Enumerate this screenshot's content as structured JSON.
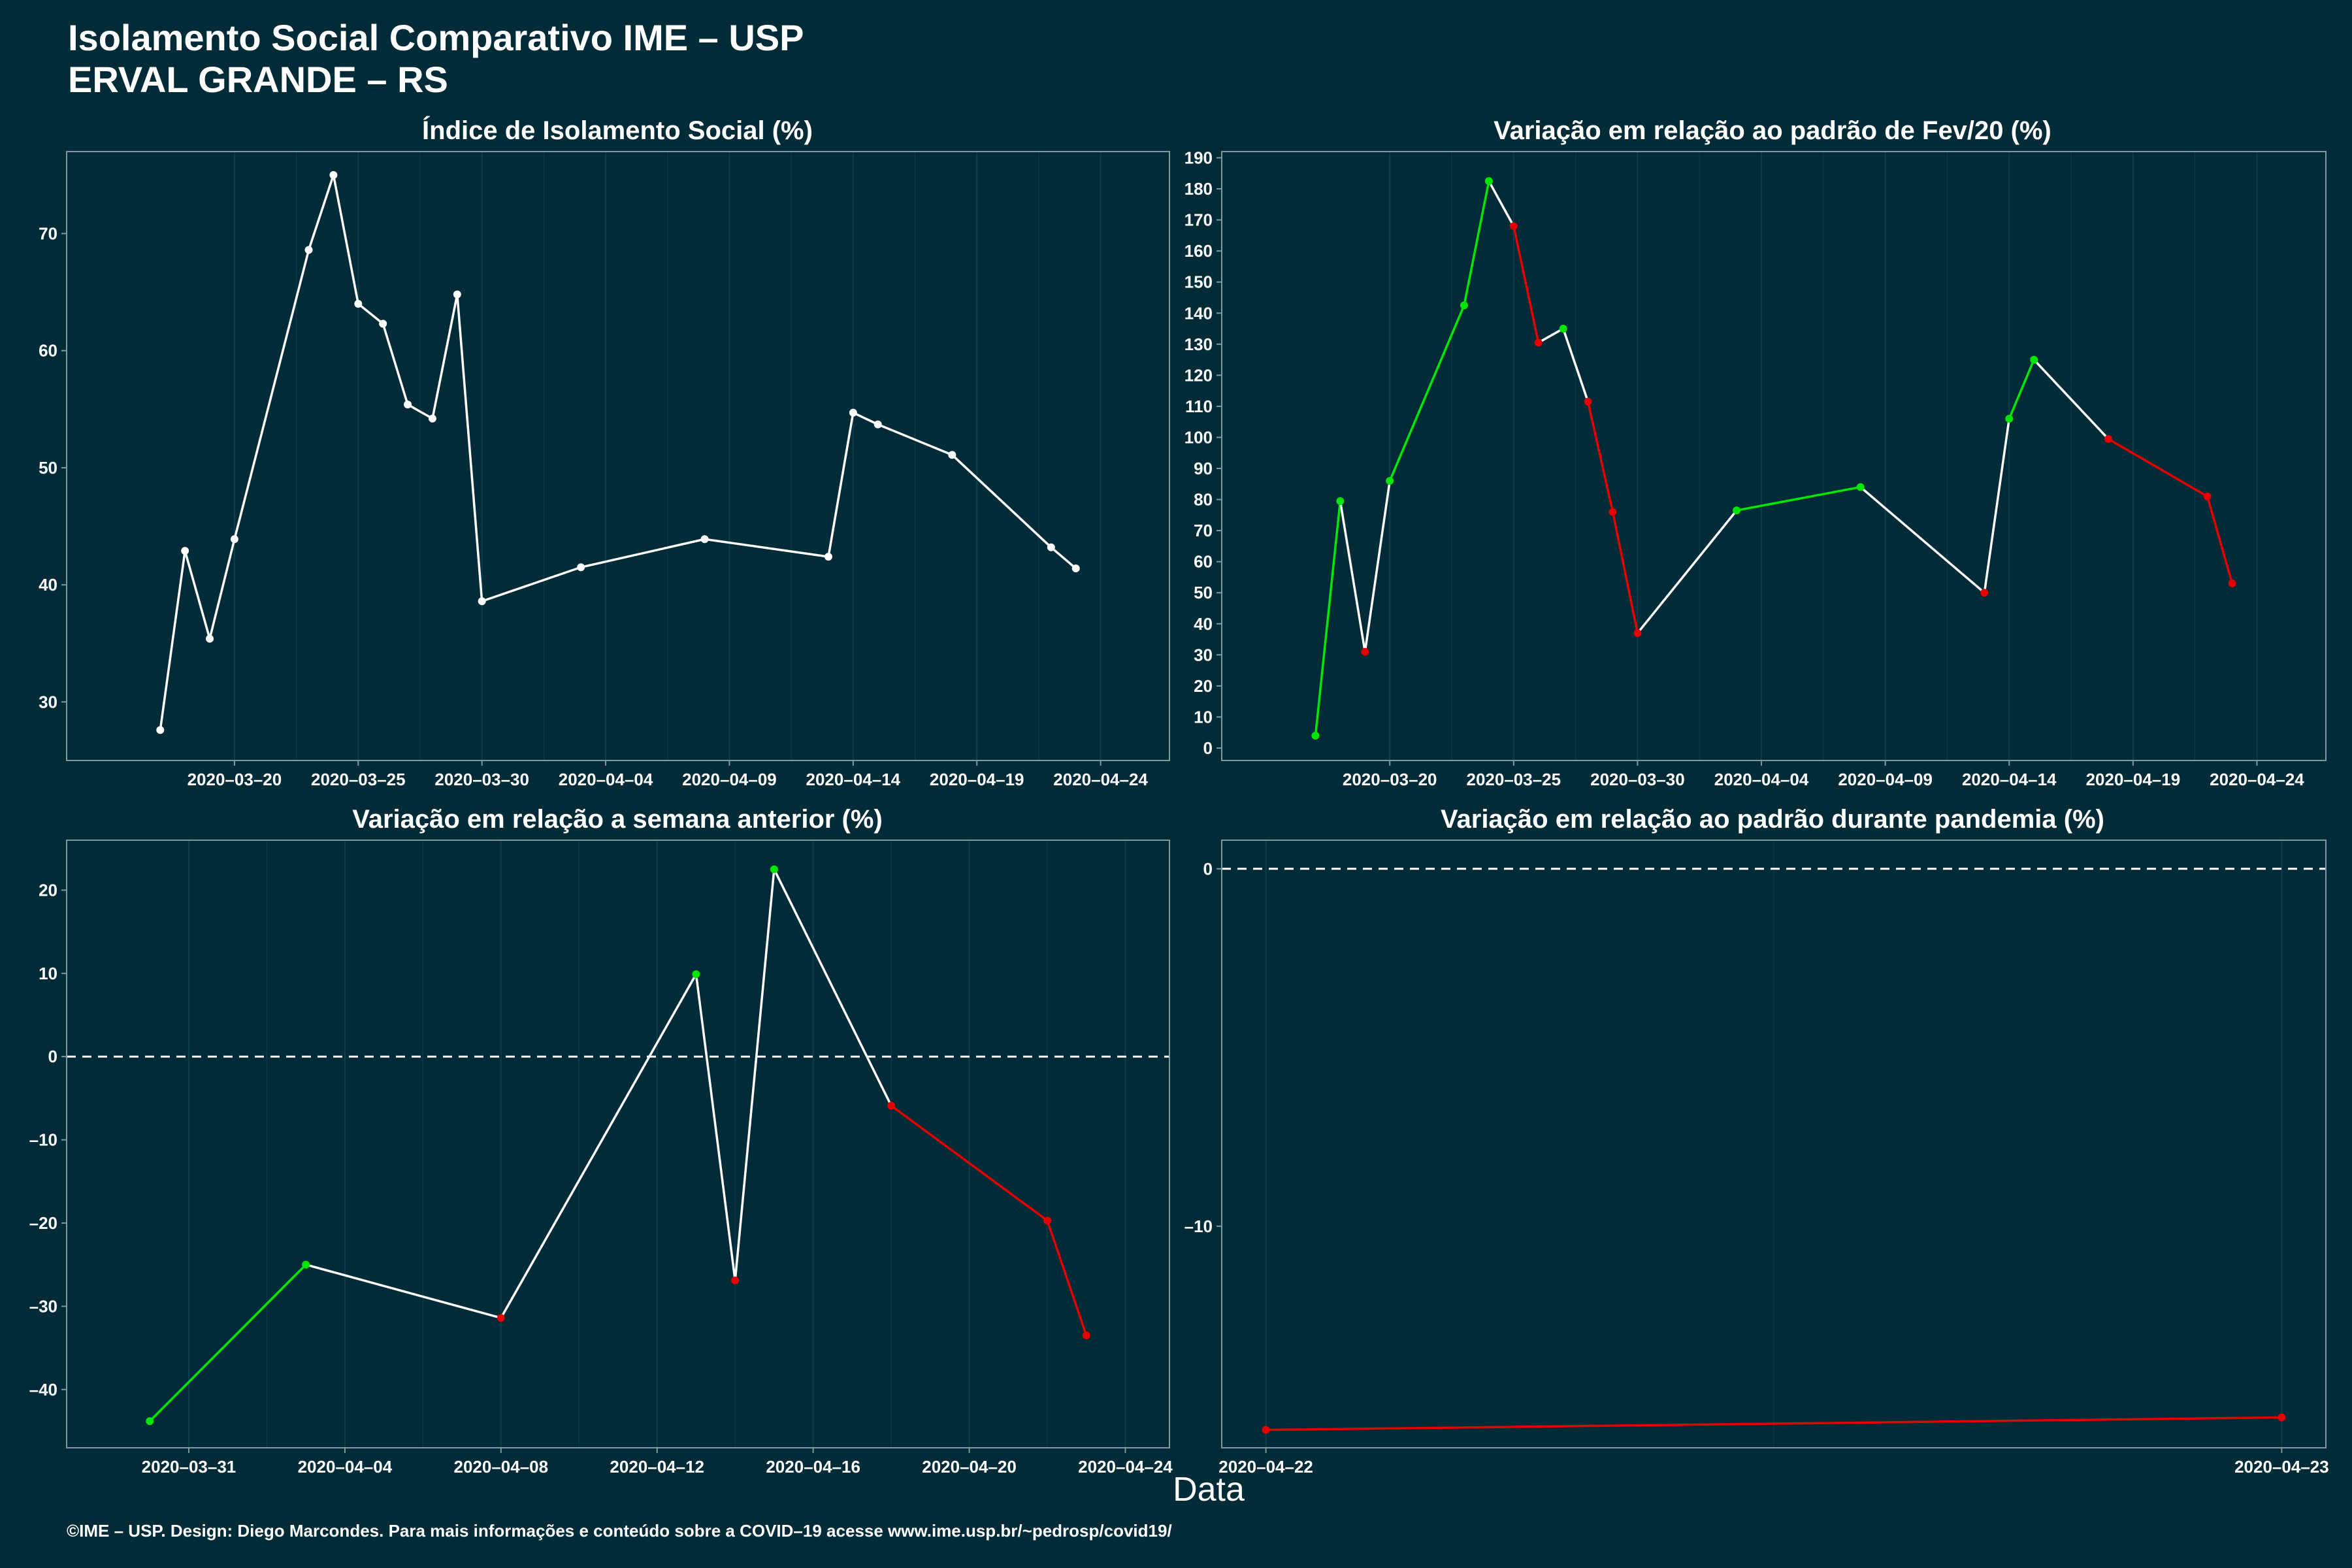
{
  "title": "Isolamento Social Comparativo IME – USP",
  "subtitle": "ERVAL GRANDE – RS",
  "xlabel": "Data",
  "footer": "©IME – USP. Design: Diego Marcondes. Para mais informações e conteúdo sobre a COVID–19 acesse www.ime.usp.br/~pedrosp/covid19/",
  "colors": {
    "background": "#022b38",
    "line": "#ffffff",
    "positive": "#00e600",
    "negative": "#e60000",
    "axis": "#7f9aa3",
    "grid": "#0e3e4a"
  },
  "chart_data": [
    {
      "type": "line",
      "title": "Índice de Isolamento Social (%)",
      "ylim": [
        25,
        77
      ],
      "yticks": [
        30,
        40,
        50,
        60,
        70
      ],
      "xlim": [
        "2020-03-15",
        "2020-04-25"
      ],
      "xticks": [
        "2020-03-20",
        "2020-03-25",
        "2020-03-30",
        "2020-04-04",
        "2020-04-09",
        "2020-04-14",
        "2020-04-19",
        "2020-04-24"
      ],
      "color_mode": "white",
      "x": [
        "2020-03-17",
        "2020-03-18",
        "2020-03-19",
        "2020-03-20",
        "2020-03-23",
        "2020-03-24",
        "2020-03-25",
        "2020-03-26",
        "2020-03-27",
        "2020-03-28",
        "2020-03-29",
        "2020-03-30",
        "2020-04-03",
        "2020-04-08",
        "2020-04-13",
        "2020-04-14",
        "2020-04-15",
        "2020-04-18",
        "2020-04-22",
        "2020-04-23"
      ],
      "y": [
        27.6,
        42.9,
        35.4,
        43.9,
        68.6,
        75.0,
        64.0,
        62.3,
        55.4,
        54.2,
        64.8,
        38.6,
        41.5,
        43.9,
        42.4,
        54.7,
        53.7,
        51.1,
        43.2,
        41.4
      ]
    },
    {
      "type": "line",
      "title": "Variação em relação ao padrão de Fev/20 (%)",
      "ylim": [
        -4,
        192
      ],
      "yticks": [
        0,
        10,
        20,
        30,
        40,
        50,
        60,
        70,
        80,
        90,
        100,
        110,
        120,
        130,
        140,
        150,
        160,
        170,
        180,
        190
      ],
      "xlim": [
        "2020-03-15",
        "2020-04-25"
      ],
      "xticks": [
        "2020-03-20",
        "2020-03-25",
        "2020-03-30",
        "2020-04-04",
        "2020-04-09",
        "2020-04-14",
        "2020-04-19",
        "2020-04-24"
      ],
      "color_mode": "consecutive",
      "x": [
        "2020-03-17",
        "2020-03-18",
        "2020-03-19",
        "2020-03-20",
        "2020-03-23",
        "2020-03-24",
        "2020-03-25",
        "2020-03-26",
        "2020-03-27",
        "2020-03-28",
        "2020-03-29",
        "2020-03-30",
        "2020-04-03",
        "2020-04-08",
        "2020-04-13",
        "2020-04-14",
        "2020-04-15",
        "2020-04-18",
        "2020-04-22",
        "2020-04-23"
      ],
      "y": [
        4,
        79.5,
        31,
        86,
        142.5,
        182.5,
        168,
        130.5,
        135,
        111.5,
        76,
        37,
        76.5,
        84,
        50,
        106,
        125,
        99.5,
        81,
        53
      ]
    },
    {
      "type": "line",
      "title": "Variação em relação a semana anterior (%)",
      "ylim": [
        -47,
        26
      ],
      "yticks": [
        -40,
        -30,
        -20,
        -10,
        0,
        10,
        20
      ],
      "xlim": [
        "2020-03-29",
        "2020-04-24"
      ],
      "xticks": [
        "2020-03-31",
        "2020-04-04",
        "2020-04-08",
        "2020-04-12",
        "2020-04-16",
        "2020-04-20",
        "2020-04-24"
      ],
      "color_mode": "consecutive",
      "zero_line": true,
      "x": [
        "2020-03-30",
        "2020-04-03",
        "2020-04-08",
        "2020-04-13",
        "2020-04-14",
        "2020-04-15",
        "2020-04-18",
        "2020-04-22",
        "2020-04-23"
      ],
      "y": [
        -43.8,
        -25.0,
        -31.4,
        9.9,
        -26.9,
        22.5,
        -5.9,
        -19.7,
        -33.5
      ]
    },
    {
      "type": "line",
      "title": "Variação em relação ao padrão durante pandemia (%)",
      "ylim": [
        -16.2,
        0.8
      ],
      "yticks": [
        -10,
        0
      ],
      "xlim": [
        "2020-04-22",
        "2020-04-23"
      ],
      "xticks": [
        "2020-04-22",
        "2020-04-23"
      ],
      "color_mode": "sign",
      "zero_line": true,
      "x": [
        "2020-04-22",
        "2020-04-23"
      ],
      "y": [
        -15.7,
        -15.35
      ]
    }
  ]
}
